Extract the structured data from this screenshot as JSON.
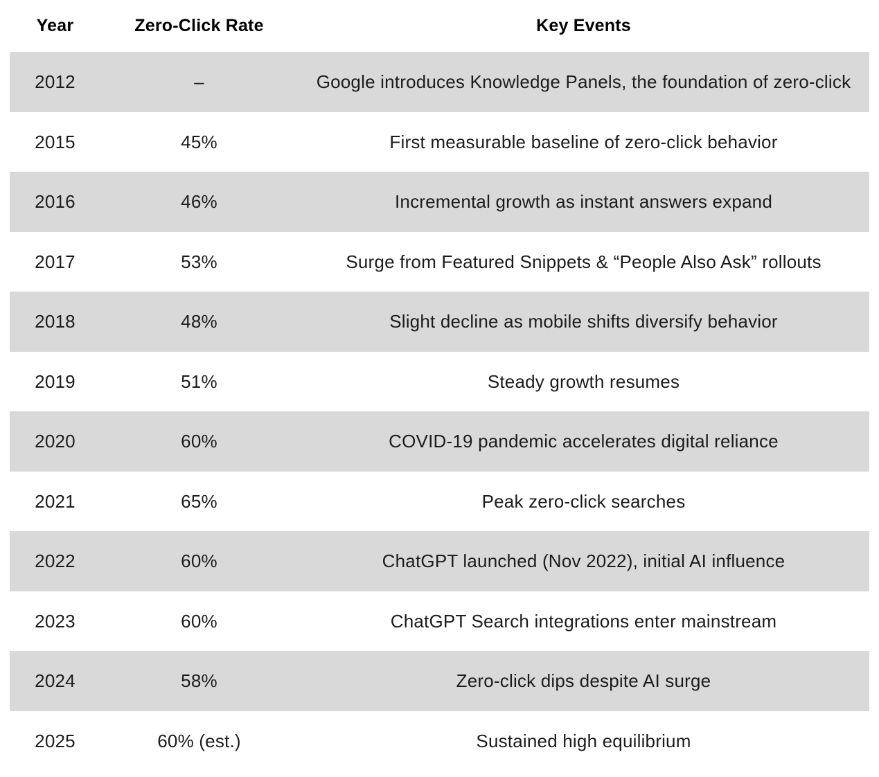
{
  "chart_data": {
    "type": "table",
    "columns": [
      "Year",
      "Zero-Click Rate",
      "Key Events"
    ],
    "rows": [
      [
        "2012",
        "–",
        "Google introduces Knowledge Panels, the foundation of zero-click"
      ],
      [
        "2015",
        "45%",
        "First measurable baseline of zero-click behavior"
      ],
      [
        "2016",
        "46%",
        "Incremental growth as instant answers expand"
      ],
      [
        "2017",
        "53%",
        "Surge from Featured Snippets & “People Also Ask” rollouts"
      ],
      [
        "2018",
        "48%",
        "Slight decline as mobile shifts diversify behavior"
      ],
      [
        "2019",
        "51%",
        "Steady growth resumes"
      ],
      [
        "2020",
        "60%",
        "COVID-19 pandemic accelerates digital reliance"
      ],
      [
        "2021",
        "65%",
        "Peak zero-click searches"
      ],
      [
        "2022",
        "60%",
        "ChatGPT launched (Nov 2022), initial AI influence"
      ],
      [
        "2023",
        "60%",
        "ChatGPT Search integrations enter mainstream"
      ],
      [
        "2024",
        "58%",
        "Zero-click dips despite AI surge"
      ],
      [
        "2025",
        "60% (est.)",
        "Sustained high equilibrium"
      ]
    ],
    "numeric_series": {
      "name": "Zero-Click Rate (%)",
      "x": [
        2012,
        2015,
        2016,
        2017,
        2018,
        2019,
        2020,
        2021,
        2022,
        2023,
        2024,
        2025
      ],
      "y": [
        null,
        45,
        46,
        53,
        48,
        51,
        60,
        65,
        60,
        60,
        58,
        60
      ],
      "notes": {
        "2012": "no rate shown (–)",
        "2025": "estimated value"
      }
    },
    "layout": {
      "row_striping": "alternating, first data row shaded",
      "colors": {
        "shaded_row": "#d9d9d9",
        "plain_row": "#ffffff",
        "body_text": "#1c1c1c",
        "header_text": "#000000"
      }
    }
  }
}
